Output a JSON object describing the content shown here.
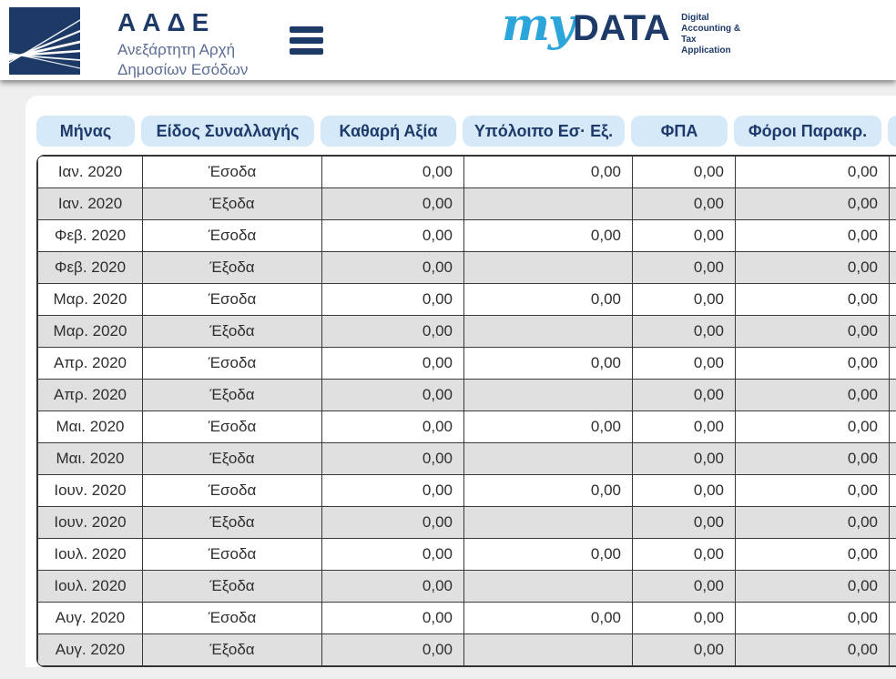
{
  "header": {
    "agency_title": "ΑΑΔΕ",
    "agency_subtitle_line1": "Ανεξάρτητη Αρχή",
    "agency_subtitle_line2": "Δημοσίων Εσόδων",
    "brand_my": "my",
    "brand_data": "DATA",
    "brand_tagline": "Digital\nAccounting &\nTax\nApplication"
  },
  "colors": {
    "navy": "#1d3a68",
    "subtitle_blue_gray": "#5c6d93",
    "brand_light_blue": "#2ba5da",
    "pill_background": "#d5e9f8",
    "row_alt_background": "#e0e0e0",
    "page_background": "#efefef"
  },
  "table": {
    "columns": [
      "Μήνας",
      "Είδος Συναλλαγής",
      "Καθαρή Αξία",
      "Υπόλοιπο Εσ· Εξ.",
      "ΦΠΑ",
      "Φόροι Παρακρ."
    ],
    "rows": [
      {
        "month": "Ιαν. 2020",
        "type": "Έσοδα",
        "net": "0,00",
        "balance": "0,00",
        "vat": "0,00",
        "withheld": "0,00"
      },
      {
        "month": "Ιαν. 2020",
        "type": "Έξοδα",
        "net": "0,00",
        "balance": "",
        "vat": "0,00",
        "withheld": "0,00"
      },
      {
        "month": "Φεβ. 2020",
        "type": "Έσοδα",
        "net": "0,00",
        "balance": "0,00",
        "vat": "0,00",
        "withheld": "0,00"
      },
      {
        "month": "Φεβ. 2020",
        "type": "Έξοδα",
        "net": "0,00",
        "balance": "",
        "vat": "0,00",
        "withheld": "0,00"
      },
      {
        "month": "Μαρ. 2020",
        "type": "Έσοδα",
        "net": "0,00",
        "balance": "0,00",
        "vat": "0,00",
        "withheld": "0,00"
      },
      {
        "month": "Μαρ. 2020",
        "type": "Έξοδα",
        "net": "0,00",
        "balance": "",
        "vat": "0,00",
        "withheld": "0,00"
      },
      {
        "month": "Απρ. 2020",
        "type": "Έσοδα",
        "net": "0,00",
        "balance": "0,00",
        "vat": "0,00",
        "withheld": "0,00"
      },
      {
        "month": "Απρ. 2020",
        "type": "Έξοδα",
        "net": "0,00",
        "balance": "",
        "vat": "0,00",
        "withheld": "0,00"
      },
      {
        "month": "Μαι. 2020",
        "type": "Έσοδα",
        "net": "0,00",
        "balance": "0,00",
        "vat": "0,00",
        "withheld": "0,00"
      },
      {
        "month": "Μαι. 2020",
        "type": "Έξοδα",
        "net": "0,00",
        "balance": "",
        "vat": "0,00",
        "withheld": "0,00"
      },
      {
        "month": "Ιουν. 2020",
        "type": "Έσοδα",
        "net": "0,00",
        "balance": "0,00",
        "vat": "0,00",
        "withheld": "0,00"
      },
      {
        "month": "Ιουν. 2020",
        "type": "Έξοδα",
        "net": "0,00",
        "balance": "",
        "vat": "0,00",
        "withheld": "0,00"
      },
      {
        "month": "Ιουλ. 2020",
        "type": "Έσοδα",
        "net": "0,00",
        "balance": "0,00",
        "vat": "0,00",
        "withheld": "0,00"
      },
      {
        "month": "Ιουλ. 2020",
        "type": "Έξοδα",
        "net": "0,00",
        "balance": "",
        "vat": "0,00",
        "withheld": "0,00"
      },
      {
        "month": "Αυγ. 2020",
        "type": "Έσοδα",
        "net": "0,00",
        "balance": "0,00",
        "vat": "0,00",
        "withheld": "0,00"
      },
      {
        "month": "Αυγ. 2020",
        "type": "Έξοδα",
        "net": "0,00",
        "balance": "",
        "vat": "0,00",
        "withheld": "0,00"
      }
    ]
  }
}
